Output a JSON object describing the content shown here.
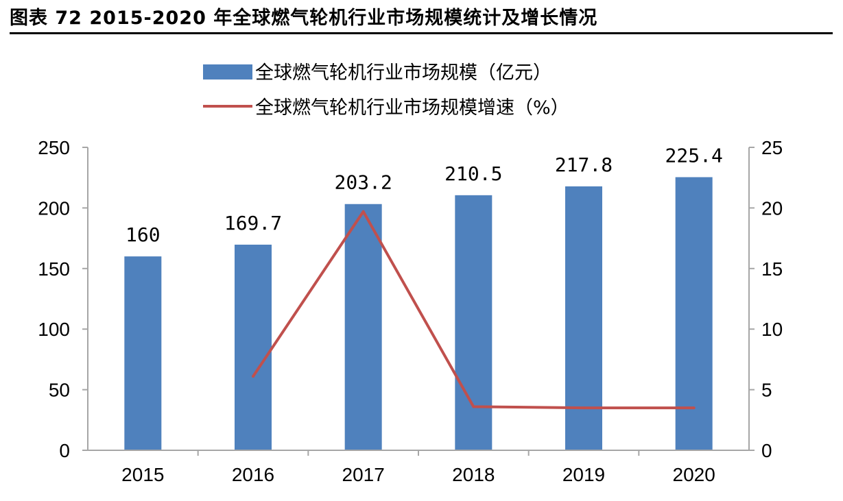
{
  "figure": {
    "title": "图表 72 2015-2020 年全球燃气轮机行业市场规模统计及增长情况"
  },
  "colors": {
    "bar": "#4f81bd",
    "line": "#c0504d",
    "axis": "#a6a6a6"
  },
  "chart_data": {
    "type": "bar",
    "title": "",
    "xlabel": "",
    "ylabel": "",
    "categories": [
      "2015",
      "2016",
      "2017",
      "2018",
      "2019",
      "2020"
    ],
    "legend_position": "top",
    "grid": false,
    "series": [
      {
        "name": "全球燃气轮机行业市场规模（亿元）",
        "type": "bar",
        "axis": "left",
        "values": [
          160,
          169.7,
          203.2,
          210.5,
          217.8,
          225.4
        ],
        "labels": [
          "160",
          "169.7",
          "203.2",
          "210.5",
          "217.8",
          "225.4"
        ]
      },
      {
        "name": "全球燃气轮机行业市场规模增速（%）",
        "type": "line",
        "axis": "right",
        "values": [
          null,
          6.1,
          19.7,
          3.6,
          3.5,
          3.5
        ]
      }
    ],
    "y_left": {
      "min": 0,
      "max": 250,
      "ticks": [
        "0",
        "50",
        "100",
        "150",
        "200",
        "250"
      ]
    },
    "y_right": {
      "min": 0,
      "max": 25,
      "ticks": [
        "0",
        "5",
        "10",
        "15",
        "20",
        "25"
      ]
    }
  }
}
